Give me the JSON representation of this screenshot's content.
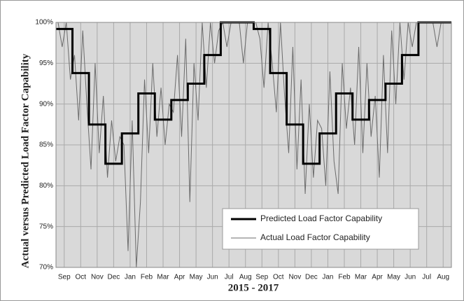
{
  "chart_data": {
    "type": "line",
    "x_label": "2015 - 2017",
    "y_label": "Actual versus Predicted Load Factor Capability",
    "xlim": [
      0,
      24
    ],
    "xticks": [
      {
        "value": 0.5,
        "label": "Sep"
      },
      {
        "value": 1.5,
        "label": "Oct"
      },
      {
        "value": 2.5,
        "label": "Nov"
      },
      {
        "value": 3.5,
        "label": "Dec"
      },
      {
        "value": 4.5,
        "label": "Jan"
      },
      {
        "value": 5.5,
        "label": "Feb"
      },
      {
        "value": 6.5,
        "label": "Mar"
      },
      {
        "value": 7.5,
        "label": "Apr"
      },
      {
        "value": 8.5,
        "label": "May"
      },
      {
        "value": 9.5,
        "label": "Jun"
      },
      {
        "value": 10.5,
        "label": "Jul"
      },
      {
        "value": 11.5,
        "label": "Aug"
      },
      {
        "value": 12.5,
        "label": "Sep"
      },
      {
        "value": 13.5,
        "label": "Oct"
      },
      {
        "value": 14.5,
        "label": "Nov"
      },
      {
        "value": 15.5,
        "label": "Dec"
      },
      {
        "value": 16.5,
        "label": "Jan"
      },
      {
        "value": 17.5,
        "label": "Feb"
      },
      {
        "value": 18.5,
        "label": "Mar"
      },
      {
        "value": 19.5,
        "label": "Apr"
      },
      {
        "value": 20.5,
        "label": "May"
      },
      {
        "value": 21.5,
        "label": "Jun"
      },
      {
        "value": 22.5,
        "label": "Jul"
      },
      {
        "value": 23.5,
        "label": "Aug"
      }
    ],
    "ylim": [
      70,
      100
    ],
    "yticks": [
      {
        "value": 70,
        "label": "70%"
      },
      {
        "value": 75,
        "label": "75%"
      },
      {
        "value": 80,
        "label": "80%"
      },
      {
        "value": 85,
        "label": "85%"
      },
      {
        "value": 90,
        "label": "90%"
      },
      {
        "value": 95,
        "label": "95%"
      },
      {
        "value": 100,
        "label": "100%"
      }
    ],
    "grid": true,
    "legend": "lower right",
    "series": [
      {
        "name": "Actual Load Factor Capability",
        "color": "#6b6b6b",
        "width": 1,
        "x": [
          0.125,
          0.375,
          0.625,
          0.875,
          1.125,
          1.375,
          1.625,
          1.875,
          2.125,
          2.375,
          2.625,
          2.875,
          3.125,
          3.375,
          3.625,
          3.875,
          4.125,
          4.375,
          4.625,
          4.875,
          5.125,
          5.375,
          5.625,
          5.875,
          6.125,
          6.375,
          6.625,
          6.875,
          7.125,
          7.375,
          7.625,
          7.875,
          8.125,
          8.375,
          8.625,
          8.875,
          9.125,
          9.375,
          9.625,
          9.875,
          10.125,
          10.375,
          10.625,
          10.875,
          11.125,
          11.375,
          11.625,
          11.875,
          12.125,
          12.375,
          12.625,
          12.875,
          13.125,
          13.375,
          13.625,
          13.875,
          14.125,
          14.375,
          14.625,
          14.875,
          15.125,
          15.375,
          15.625,
          15.875,
          16.125,
          16.375,
          16.625,
          16.875,
          17.125,
          17.375,
          17.625,
          17.875,
          18.125,
          18.375,
          18.625,
          18.875,
          19.125,
          19.375,
          19.625,
          19.875,
          20.125,
          20.375,
          20.625,
          20.875,
          21.125,
          21.375,
          21.625,
          21.875,
          22.125,
          22.375,
          22.625,
          22.875,
          23.125,
          23.375,
          23.625,
          23.875
        ],
        "values": [
          100,
          97,
          100,
          93,
          96,
          88,
          99,
          90,
          82,
          95,
          84,
          91,
          81,
          88,
          83,
          86,
          85,
          72,
          88,
          70,
          78,
          93,
          84,
          95,
          86,
          92,
          85,
          90,
          89,
          96,
          86,
          98,
          78,
          95,
          88,
          100,
          92,
          100,
          95,
          99,
          100,
          97,
          100,
          100,
          100,
          95,
          100,
          100,
          100,
          98,
          92,
          100,
          95,
          89,
          100,
          91,
          84,
          97,
          82,
          93,
          79,
          90,
          81,
          88,
          87,
          80,
          94,
          83,
          79,
          95,
          87,
          92,
          85,
          97,
          84,
          95,
          86,
          91,
          81,
          96,
          84,
          99,
          90,
          100,
          93,
          100,
          97,
          100,
          100,
          100,
          100,
          100,
          97,
          100,
          100,
          100
        ]
      },
      {
        "name": "Predicted Load Factor Capability",
        "color": "#000000",
        "width": 3,
        "x": [
          0,
          1,
          1,
          2,
          2,
          3,
          3,
          4,
          4,
          5,
          5,
          6,
          6,
          7,
          7,
          8,
          8,
          9,
          9,
          10,
          10,
          11,
          11,
          12,
          12,
          13,
          13,
          14,
          14,
          15,
          15,
          16,
          16,
          17,
          17,
          18,
          18,
          19,
          19,
          20,
          20,
          21,
          21,
          22,
          22,
          23,
          23,
          24
        ],
        "values": [
          99.2,
          99.2,
          93.8,
          93.8,
          87.5,
          87.5,
          82.7,
          82.7,
          86.4,
          86.4,
          91.3,
          91.3,
          88.1,
          88.1,
          90.5,
          90.5,
          92.5,
          92.5,
          96,
          96,
          100,
          100,
          100,
          100,
          99.2,
          99.2,
          93.8,
          93.8,
          87.5,
          87.5,
          82.7,
          82.7,
          86.4,
          86.4,
          91.3,
          91.3,
          88.1,
          88.1,
          90.5,
          90.5,
          92.5,
          92.5,
          96,
          96,
          100,
          100,
          100,
          100
        ]
      }
    ]
  }
}
